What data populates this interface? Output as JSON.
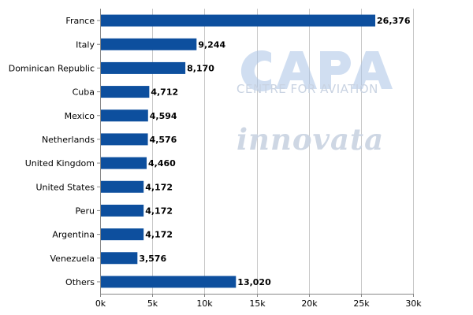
{
  "chart_data": {
    "type": "bar",
    "orientation": "horizontal",
    "categories": [
      "France",
      "Italy",
      "Dominican Republic",
      "Cuba",
      "Mexico",
      "Netherlands",
      "United Kingdom",
      "United States",
      "Peru",
      "Argentina",
      "Venezuela",
      "Others"
    ],
    "values": [
      26376,
      9244,
      8170,
      4712,
      4594,
      4576,
      4460,
      4172,
      4172,
      4172,
      3576,
      13020
    ],
    "value_labels": [
      "26,376",
      "9,244",
      "8,170",
      "4,712",
      "4,594",
      "4,576",
      "4,460",
      "4,172",
      "4,172",
      "4,172",
      "3,576",
      "13,020"
    ],
    "xlim": [
      0,
      30000
    ],
    "x_ticks": [
      0,
      5000,
      10000,
      15000,
      20000,
      25000,
      30000
    ],
    "x_tick_labels": [
      "0k",
      "5k",
      "10k",
      "15k",
      "20k",
      "25k",
      "30k"
    ],
    "title": "",
    "xlabel": "",
    "ylabel": "",
    "grid": "vertical",
    "bar_color": "#0d4f9e"
  },
  "watermarks": {
    "capa_logo": "CAPA",
    "capa_subtitle": "CENTRE FOR AVIATION",
    "innovata_logo": "innovata"
  }
}
